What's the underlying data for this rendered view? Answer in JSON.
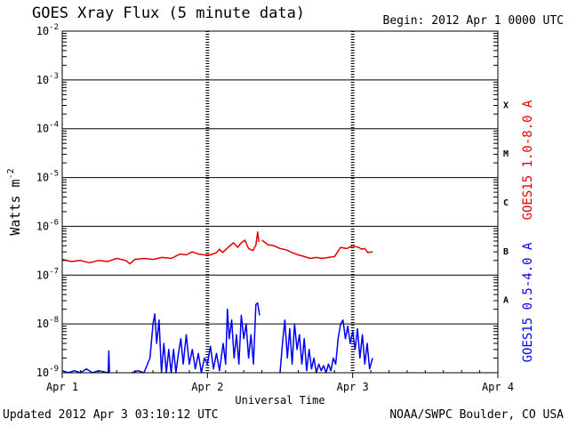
{
  "header": {
    "title": "GOES Xray Flux (5 minute data)",
    "begin": "Begin:  2012 Apr 1 0000 UTC"
  },
  "footer": {
    "updated": "Updated 2012 Apr  3 03:10:12 UTC",
    "source": "NOAA/SWPC Boulder, CO USA"
  },
  "chart_data": {
    "type": "line",
    "title": "GOES Xray Flux (5 minute data)",
    "xlabel": "Universal Time",
    "ylabel": "Watts m",
    "ylabel_sup": "-2",
    "y_scale": "log",
    "ylim": [
      1e-09,
      0.01
    ],
    "xlim_hours": [
      0,
      72
    ],
    "x_ticks": [
      {
        "label": "Apr 1",
        "hour": 0
      },
      {
        "label": "Apr 2",
        "hour": 24
      },
      {
        "label": "Apr 3",
        "hour": 48
      },
      {
        "label": "Apr 4",
        "hour": 72
      }
    ],
    "y_ticks": [
      {
        "mant": "10",
        "exp": "-9",
        "value": 1e-09
      },
      {
        "mant": "10",
        "exp": "-8",
        "value": 1e-08
      },
      {
        "mant": "10",
        "exp": "-7",
        "value": 1e-07
      },
      {
        "mant": "10",
        "exp": "-6",
        "value": 1e-06
      },
      {
        "mant": "10",
        "exp": "-5",
        "value": 1e-05
      },
      {
        "mant": "10",
        "exp": "-4",
        "value": 0.0001
      },
      {
        "mant": "10",
        "exp": "-3",
        "value": 0.001
      },
      {
        "mant": "10",
        "exp": "-2",
        "value": 0.01
      }
    ],
    "flare_classes": [
      {
        "label": "A",
        "lower": 1e-08
      },
      {
        "label": "B",
        "lower": 1e-07
      },
      {
        "label": "C",
        "lower": 1e-06
      },
      {
        "label": "M",
        "lower": 1e-05
      },
      {
        "label": "X",
        "lower": 0.0001
      }
    ],
    "grid": true,
    "colors": {
      "long": "#e00000",
      "short": "#0000ee"
    },
    "series": [
      {
        "name": "GOES15 1.0-8.0 A",
        "key": "long",
        "points": [
          [
            0.0,
            2.1e-07
          ],
          [
            1.5,
            1.9e-07
          ],
          [
            3,
            2e-07
          ],
          [
            4.5,
            1.8e-07
          ],
          [
            6,
            2e-07
          ],
          [
            7.5,
            1.9e-07
          ],
          [
            9,
            2.2e-07
          ],
          [
            10.5,
            2e-07
          ],
          [
            11.2,
            1.7e-07
          ],
          [
            12,
            2.1e-07
          ],
          [
            13.5,
            2.2e-07
          ],
          [
            15,
            2.1e-07
          ],
          [
            16.5,
            2.3e-07
          ],
          [
            18,
            2.2e-07
          ],
          [
            19.5,
            2.7e-07
          ],
          [
            20.5,
            2.6e-07
          ],
          [
            21.5,
            3e-07
          ],
          [
            22.5,
            2.7e-07
          ],
          [
            23.5,
            2.6e-07
          ],
          [
            24.5,
            2.6e-07
          ],
          [
            25.5,
            2.9e-07
          ],
          [
            26,
            3.4e-07
          ],
          [
            26.5,
            2.9e-07
          ],
          [
            27.5,
            3.8e-07
          ],
          [
            28.3,
            4.6e-07
          ],
          [
            29,
            3.7e-07
          ],
          [
            29.5,
            4.5e-07
          ],
          [
            30.2,
            5.2e-07
          ],
          [
            30.8,
            3.5e-07
          ],
          [
            31.5,
            3.2e-07
          ],
          [
            32,
            4.1e-07
          ],
          [
            32.3,
            7.7e-07
          ],
          [
            32.5,
            4.8e-07
          ],
          [
            null,
            null
          ],
          [
            33.0,
            5.2e-07
          ],
          [
            34,
            4.2e-07
          ],
          [
            35,
            4e-07
          ],
          [
            36,
            3.5e-07
          ],
          [
            37,
            3.3e-07
          ],
          [
            38,
            2.9e-07
          ],
          [
            39,
            2.6e-07
          ],
          [
            40,
            2.4e-07
          ],
          [
            41,
            2.2e-07
          ],
          [
            42,
            2.3e-07
          ],
          [
            43,
            2.2e-07
          ],
          [
            44,
            2.3e-07
          ],
          [
            45,
            2.4e-07
          ],
          [
            46,
            3.7e-07
          ],
          [
            47,
            3.5e-07
          ],
          [
            48,
            4e-07
          ],
          [
            49,
            3.7e-07
          ],
          [
            49.5,
            3.4e-07
          ],
          [
            50,
            3.5e-07
          ],
          [
            50.5,
            2.9e-07
          ],
          [
            51.3,
            3e-07
          ]
        ]
      },
      {
        "name": "GOES15 0.5-4.0 A",
        "key": "short",
        "points": [
          [
            0.0,
            1.1e-09
          ],
          [
            1,
            1e-09
          ],
          [
            2,
            1.1e-09
          ],
          [
            3,
            1e-09
          ],
          [
            4,
            1.2e-09
          ],
          [
            5,
            1e-09
          ],
          [
            6,
            1.1e-09
          ],
          [
            7.6,
            1e-09
          ],
          [
            7.7,
            2.8e-09
          ],
          [
            7.8,
            1e-09
          ],
          [
            null,
            null
          ],
          [
            11.5,
            1e-09
          ],
          [
            12.5,
            1.1e-09
          ],
          [
            13.5,
            1e-09
          ],
          [
            14.5,
            2e-09
          ],
          [
            15,
            1e-08
          ],
          [
            15.3,
            1.6e-08
          ],
          [
            15.6,
            4e-09
          ],
          [
            16,
            1.2e-08
          ],
          [
            16.4,
            1e-09
          ],
          [
            16.8,
            4e-09
          ],
          [
            17.2,
            1e-09
          ],
          [
            17.6,
            3e-09
          ],
          [
            18,
            1e-09
          ],
          [
            18.4,
            3e-09
          ],
          [
            18.8,
            1e-09
          ],
          [
            19.2,
            2.5e-09
          ],
          [
            19.6,
            5e-09
          ],
          [
            20,
            1.5e-09
          ],
          [
            20.5,
            6e-09
          ],
          [
            21,
            1.5e-09
          ],
          [
            21.5,
            3e-09
          ],
          [
            22,
            1.2e-09
          ],
          [
            22.5,
            2.5e-09
          ],
          [
            23,
            1e-09
          ],
          [
            23.5,
            2e-09
          ],
          [
            24,
            1.5e-09
          ],
          [
            24.5,
            3.5e-09
          ],
          [
            25,
            1.2e-09
          ],
          [
            25.5,
            2.5e-09
          ],
          [
            26,
            1.1e-09
          ],
          [
            26.6,
            4e-09
          ],
          [
            27,
            1.5e-09
          ],
          [
            27.3,
            2e-08
          ],
          [
            27.6,
            5e-09
          ],
          [
            28,
            1.2e-08
          ],
          [
            28.4,
            2e-09
          ],
          [
            28.8,
            6e-09
          ],
          [
            29.2,
            1.5e-09
          ],
          [
            29.6,
            1.5e-08
          ],
          [
            30,
            5e-09
          ],
          [
            30.4,
            1e-08
          ],
          [
            30.8,
            2e-09
          ],
          [
            31.2,
            6e-09
          ],
          [
            31.6,
            1.5e-09
          ],
          [
            32,
            2.5e-08
          ],
          [
            32.3,
            2.7e-08
          ],
          [
            32.6,
            1.5e-08
          ],
          [
            null,
            null
          ],
          [
            36,
            1e-09
          ],
          [
            36.4,
            4e-09
          ],
          [
            36.8,
            1.2e-08
          ],
          [
            37.2,
            2e-09
          ],
          [
            37.6,
            8e-09
          ],
          [
            38,
            1.5e-09
          ],
          [
            38.4,
            1e-08
          ],
          [
            38.8,
            3e-09
          ],
          [
            39.2,
            6e-09
          ],
          [
            39.6,
            1.5e-09
          ],
          [
            40,
            5e-09
          ],
          [
            40.4,
            1.1e-09
          ],
          [
            40.8,
            3e-09
          ],
          [
            41.2,
            1.2e-09
          ],
          [
            41.6,
            2e-09
          ],
          [
            42,
            1e-09
          ],
          [
            42.4,
            1.5e-09
          ],
          [
            42.8,
            1.1e-09
          ],
          [
            43.2,
            1.4e-09
          ],
          [
            43.6,
            1e-09
          ],
          [
            44,
            1.5e-09
          ],
          [
            44.4,
            1.1e-09
          ],
          [
            44.8,
            2e-09
          ],
          [
            45.2,
            1.5e-09
          ],
          [
            45.6,
            5e-09
          ],
          [
            46,
            1e-08
          ],
          [
            46.4,
            1.2e-08
          ],
          [
            46.8,
            5e-09
          ],
          [
            47.2,
            9e-09
          ],
          [
            47.6,
            4e-09
          ],
          [
            48,
            7e-09
          ],
          [
            48.4,
            3e-09
          ],
          [
            48.8,
            8e-09
          ],
          [
            49.2,
            2e-09
          ],
          [
            49.6,
            6e-09
          ],
          [
            50,
            1.5e-09
          ],
          [
            50.4,
            4e-09
          ],
          [
            50.8,
            1.2e-09
          ],
          [
            51.3,
            2e-09
          ]
        ]
      }
    ]
  }
}
